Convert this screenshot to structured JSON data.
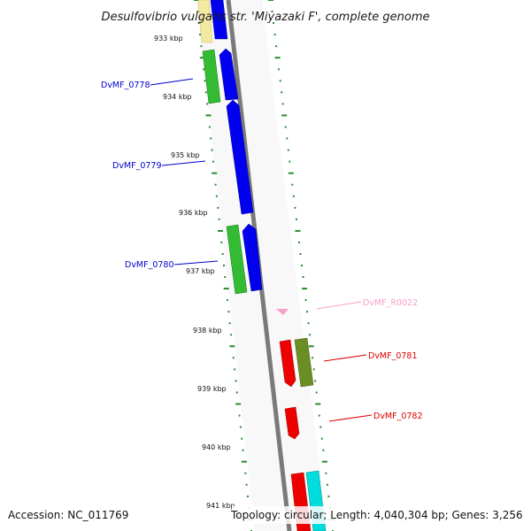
{
  "title": "Desulfovibrio vulgaris str. 'Miyazaki F', complete genome",
  "footer": {
    "accession": "Accession: NC_011769",
    "topology": "Topology: circular; Length: 4,040,304 bp; Genes: 3,256"
  },
  "ticks": [
    "933 kbp",
    "934 kbp",
    "935 kbp",
    "936 kbp",
    "937 kbp",
    "938 kbp",
    "939 kbp",
    "940 kbp",
    "941 kbp"
  ],
  "gene_labels": [
    {
      "text": "DvMF_0778",
      "color": "#0000cc"
    },
    {
      "text": "DvMF_0779",
      "color": "#0000cc"
    },
    {
      "text": "DvMF_0780",
      "color": "#0000cc"
    },
    {
      "text": "DvMF_R0022",
      "color": "#f5a0c8"
    },
    {
      "text": "DvMF_0781",
      "color": "#dd0000"
    },
    {
      "text": "DvMF_0782",
      "color": "#dd0000"
    }
  ],
  "colors": {
    "backbone": "#7a7a7a",
    "band": "#f7f7f7",
    "dots": "#2a8a2a",
    "gene_forward": "#0000ee",
    "gene_reverse": "#ee0000",
    "gene_yellow": "#f3e9a0",
    "gc_green": "#33bb33",
    "gc_olive": "#6b8e23",
    "gc_cyan": "#00dddd",
    "rna_pink": "#f5a0c8"
  }
}
